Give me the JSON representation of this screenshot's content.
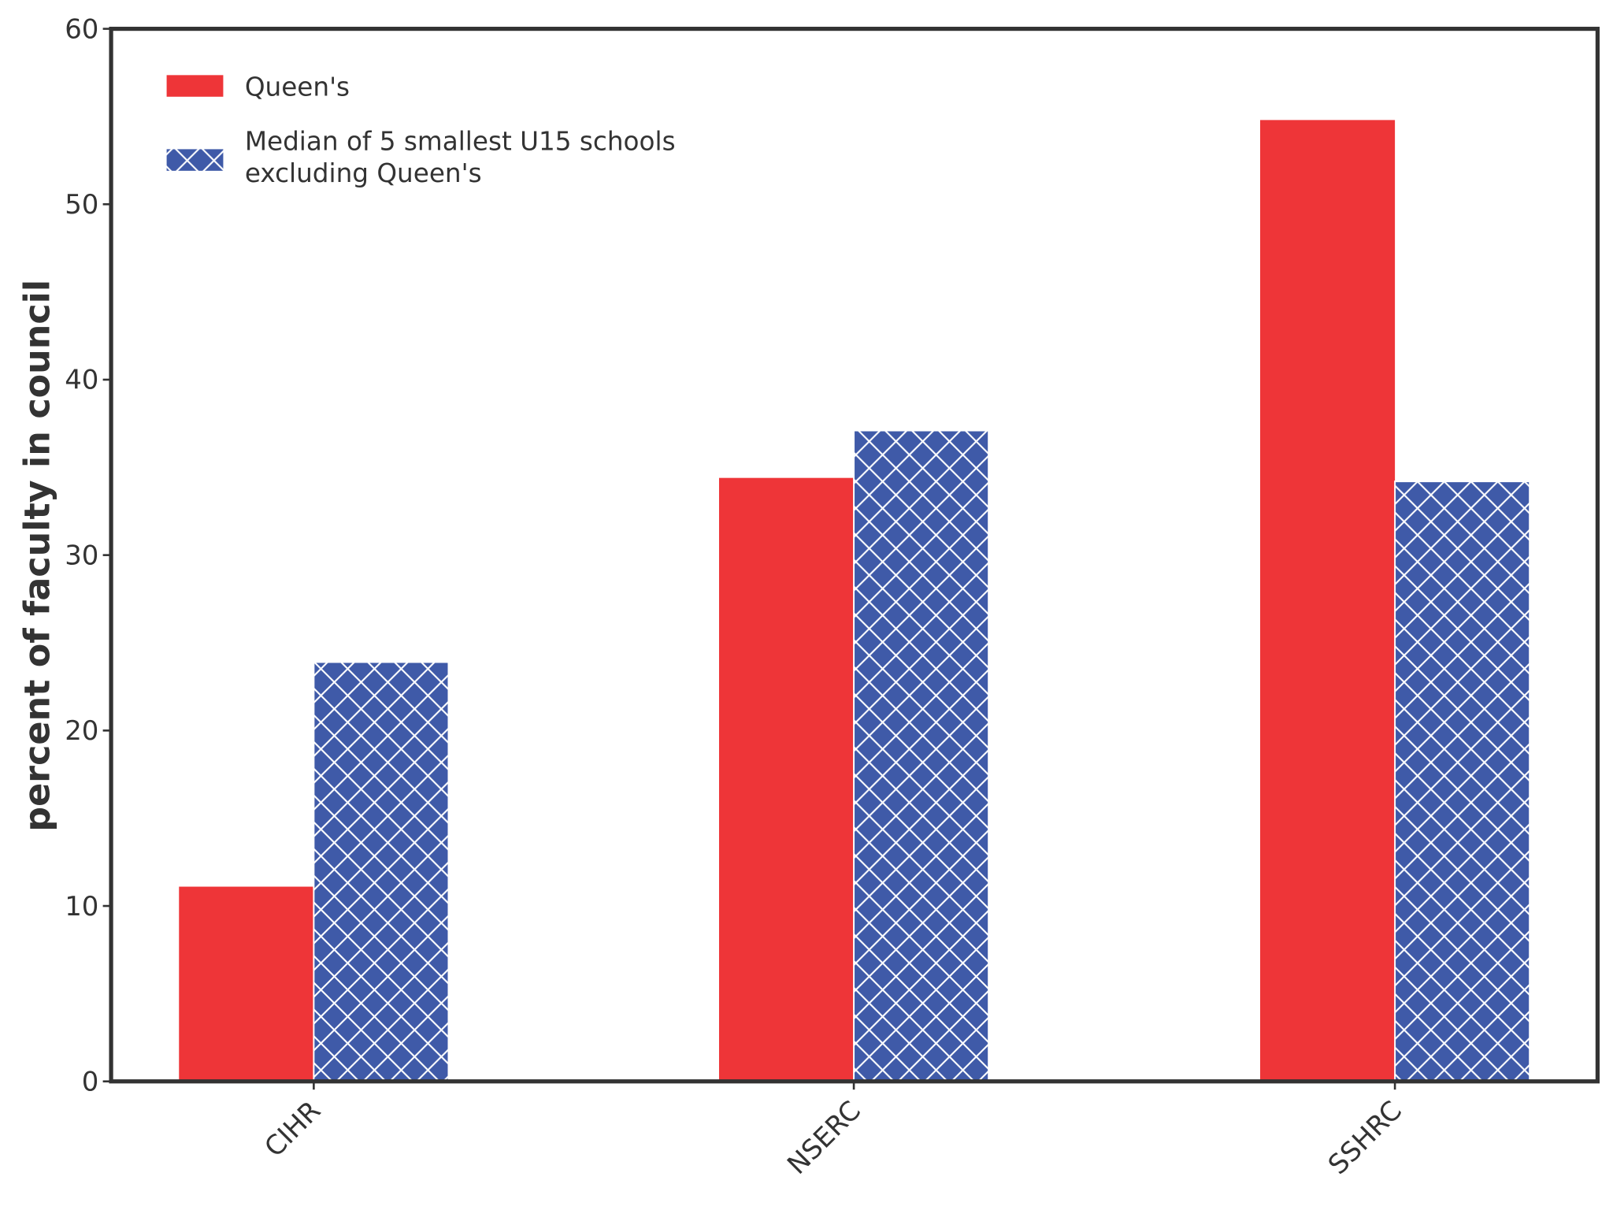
{
  "chart_data": {
    "type": "bar",
    "categories": [
      "CIHR",
      "NSERC",
      "SSHRC"
    ],
    "series": [
      {
        "name": "Queen's",
        "values": [
          11.1,
          34.4,
          54.8
        ],
        "color": "#ee3538",
        "hatch": "none"
      },
      {
        "name": "Median of 5 smallest U15 schools\nexcluding Queen's",
        "name_lines": [
          "Median of 5 smallest U15 schools",
          "excluding Queen's"
        ],
        "values": [
          23.9,
          37.1,
          34.2
        ],
        "color": "#3f5aa8",
        "hatch": "crosshatch"
      }
    ],
    "xlabel": "",
    "ylabel": "percent of faculty in council",
    "ylim": [
      0,
      60
    ],
    "yticks": [
      0,
      10,
      20,
      30,
      40,
      50,
      60
    ],
    "grid": false,
    "legend_position": "top-left"
  }
}
